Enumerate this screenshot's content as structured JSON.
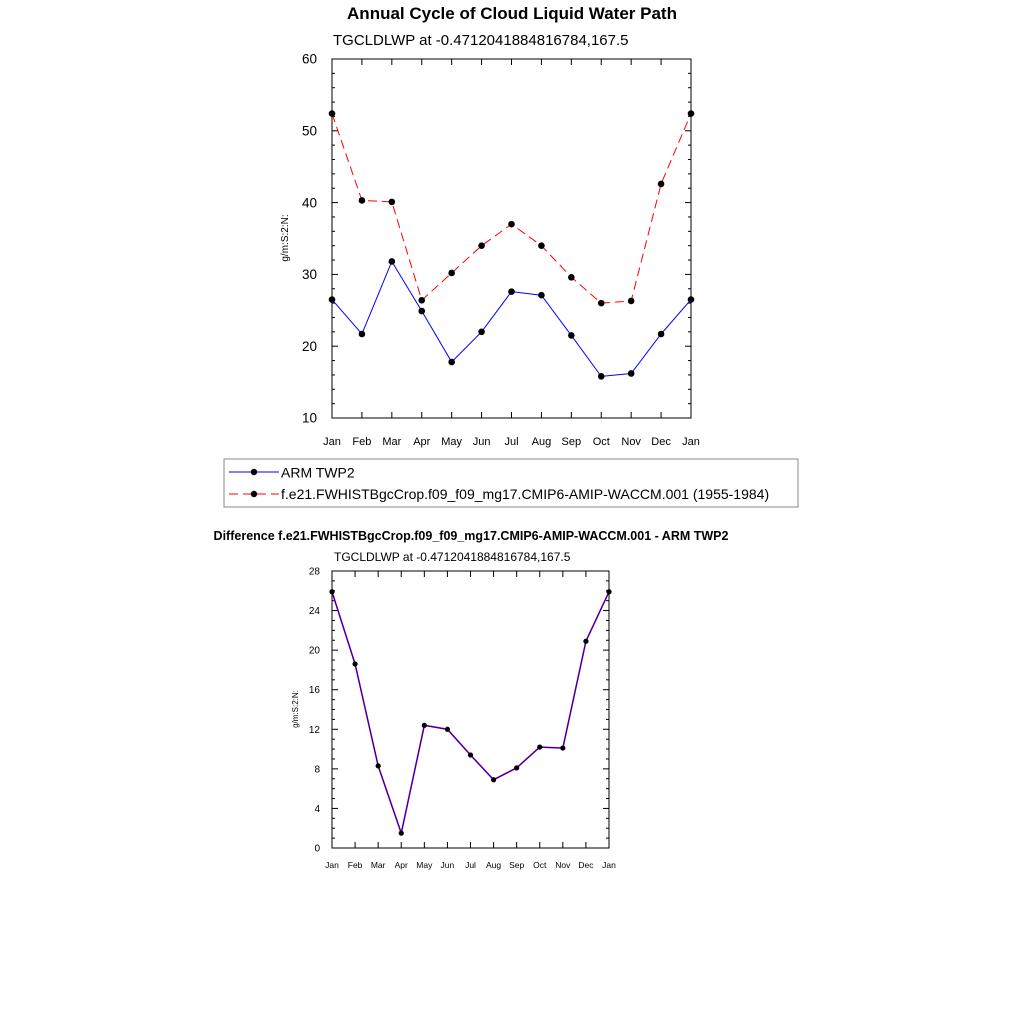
{
  "colors": {
    "obs": "#0000ff",
    "model": "#ff0000",
    "diff_line": "#0000ff",
    "diff_under": "#ff0000",
    "marker": "#000000",
    "frame": "#000000"
  },
  "chart_data": [
    {
      "type": "line",
      "title": "Annual Cycle of Cloud Liquid Water Path",
      "subtitle": "TGCLDLWP at -0.4712041884816784,167.5",
      "ylabel": "g/m:S:2:N:",
      "xlabel": "",
      "categories": [
        "Jan",
        "Feb",
        "Mar",
        "Apr",
        "May",
        "Jun",
        "Jul",
        "Aug",
        "Sep",
        "Oct",
        "Nov",
        "Dec",
        "Jan"
      ],
      "ylim": [
        10,
        60
      ],
      "yticks": [
        10,
        20,
        30,
        40,
        50,
        60
      ],
      "grid": false,
      "series": [
        {
          "name": "ARM TWP2",
          "style": "solid",
          "color": "#0000ff",
          "values": [
            26.5,
            21.7,
            31.8,
            24.9,
            17.8,
            22.0,
            27.6,
            27.1,
            21.5,
            15.8,
            16.2,
            21.7,
            26.5
          ]
        },
        {
          "name": "f.e21.FWHISTBgcCrop.f09_f09_mg17.CMIP6-AMIP-WACCM.001 (1955-1984)",
          "style": "dashed",
          "color": "#ff0000",
          "values": [
            52.4,
            40.3,
            40.1,
            26.4,
            30.2,
            34.0,
            37.0,
            34.0,
            29.6,
            26.0,
            26.3,
            42.6,
            52.4
          ]
        }
      ]
    },
    {
      "type": "line",
      "title": "Difference f.e21.FWHISTBgcCrop.f09_f09_mg17.CMIP6-AMIP-WACCM.001 - ARM TWP2",
      "subtitle": "TGCLDLWP at -0.4712041884816784,167.5",
      "ylabel": "g/m:S:2:N:",
      "xlabel": "",
      "categories": [
        "Jan",
        "Feb",
        "Mar",
        "Apr",
        "May",
        "Jun",
        "Jul",
        "Aug",
        "Sep",
        "Oct",
        "Nov",
        "Dec",
        "Jan"
      ],
      "ylim": [
        0,
        28
      ],
      "yticks": [
        0,
        4,
        8,
        12,
        16,
        20,
        24,
        28
      ],
      "grid": false,
      "series": [
        {
          "values": [
            25.9,
            18.6,
            8.3,
            1.5,
            12.4,
            12.0,
            9.4,
            6.9,
            8.1,
            10.2,
            10.1,
            20.9,
            25.9
          ]
        }
      ]
    }
  ]
}
